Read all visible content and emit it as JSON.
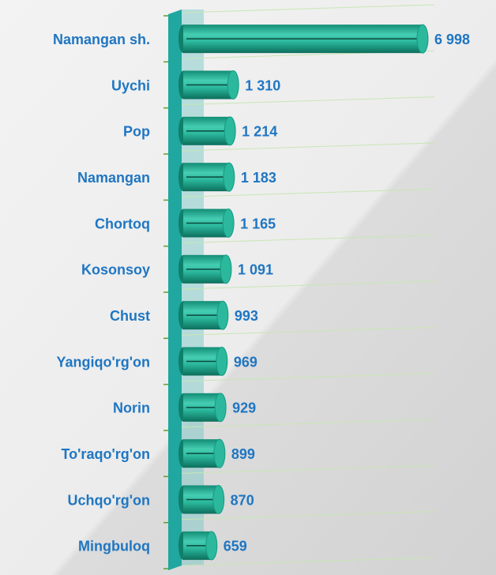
{
  "chart_data": {
    "type": "bar",
    "orientation": "horizontal",
    "categories": [
      "Namangan sh.",
      "Uychi",
      "Pop",
      "Namangan",
      "Chortoq",
      "Kosonsoy",
      "Chust",
      "Yangiqo'rg'on",
      "Norin",
      "To'raqo'rg'on",
      "Uchqo'rg'on",
      "Mingbuloq"
    ],
    "values": [
      6998,
      1310,
      1214,
      1183,
      1165,
      1091,
      993,
      969,
      929,
      899,
      870,
      659
    ],
    "value_labels": [
      "6 998",
      "1 310",
      "1 214",
      "1 183",
      "1 165",
      "1 091",
      "993",
      "969",
      "929",
      "899",
      "870",
      "659"
    ],
    "color": "#2bb89c"
  }
}
